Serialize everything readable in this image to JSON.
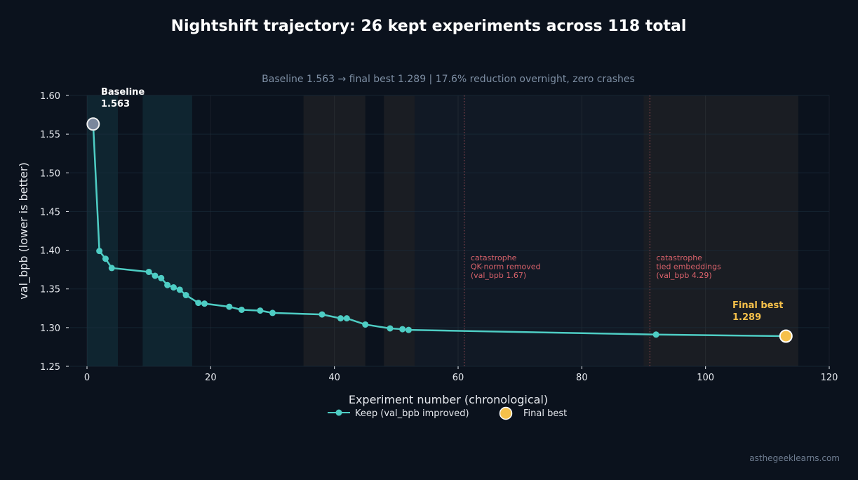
{
  "chart_data": {
    "type": "line",
    "title": "Nightshift trajectory: 26 kept experiments across 118 total",
    "subtitle": "Baseline 1.563  →  final best 1.289  |  17.6% reduction overnight, zero crashes",
    "xlabel": "Experiment number (chronological)",
    "ylabel": "val_bpb  (lower is better)",
    "xlim": [
      -2.5,
      120
    ],
    "ylim": [
      1.25,
      1.6
    ],
    "xticks": [
      0,
      20,
      40,
      60,
      80,
      100,
      120
    ],
    "yticks": [
      1.25,
      1.3,
      1.35,
      1.4,
      1.45,
      1.5,
      1.55,
      1.6
    ],
    "ytick_labels": [
      "1.25",
      "1.30",
      "1.35",
      "1.40",
      "1.45",
      "1.50",
      "1.55",
      "1.60"
    ],
    "grid": true,
    "series": [
      {
        "name": "Keep (val_bpb improved)",
        "color": "#4ecdc4",
        "x": [
          1,
          2,
          3,
          4,
          10,
          11,
          12,
          13,
          14,
          15,
          16,
          18,
          19,
          23,
          25,
          28,
          30,
          38,
          41,
          42,
          45,
          49,
          51,
          52,
          92,
          113
        ],
        "y": [
          1.563,
          1.399,
          1.389,
          1.377,
          1.372,
          1.367,
          1.364,
          1.355,
          1.352,
          1.349,
          1.342,
          1.332,
          1.331,
          1.327,
          1.323,
          1.322,
          1.319,
          1.317,
          1.312,
          1.312,
          1.304,
          1.299,
          1.298,
          1.297,
          1.291,
          1.289
        ]
      }
    ],
    "shaded_regions": [
      {
        "x0": 0,
        "x1": 5,
        "color": "#0f2530"
      },
      {
        "x0": 9,
        "x1": 17,
        "color": "#0f2530"
      },
      {
        "x0": 35,
        "x1": 45,
        "color": "#1a1d23"
      },
      {
        "x0": 48,
        "x1": 53,
        "color": "#1a1d23"
      },
      {
        "x0": 53,
        "x1": 90,
        "color": "#111925"
      },
      {
        "x0": 90,
        "x1": 115,
        "color": "#1a1d23"
      }
    ],
    "baseline": {
      "x": 1,
      "y": 1.563,
      "label": "Baseline",
      "value": "1.563",
      "color": "#7a879c"
    },
    "final_best": {
      "x": 113,
      "y": 1.289,
      "label": "Final best",
      "value": "1.289",
      "color": "#f5c04a"
    },
    "catastrophes": [
      {
        "x": 61,
        "lines": [
          "catastrophe",
          "QK-norm removed",
          "(val_bpb 1.67)"
        ]
      },
      {
        "x": 91,
        "lines": [
          "catastrophe",
          "tied embeddings",
          "(val_bpb 4.29)"
        ]
      }
    ],
    "legend": {
      "placement": "bottom-center",
      "entries": [
        "Keep (val_bpb improved)",
        "Final best"
      ]
    }
  },
  "credit": "asthegeeklearns.com"
}
